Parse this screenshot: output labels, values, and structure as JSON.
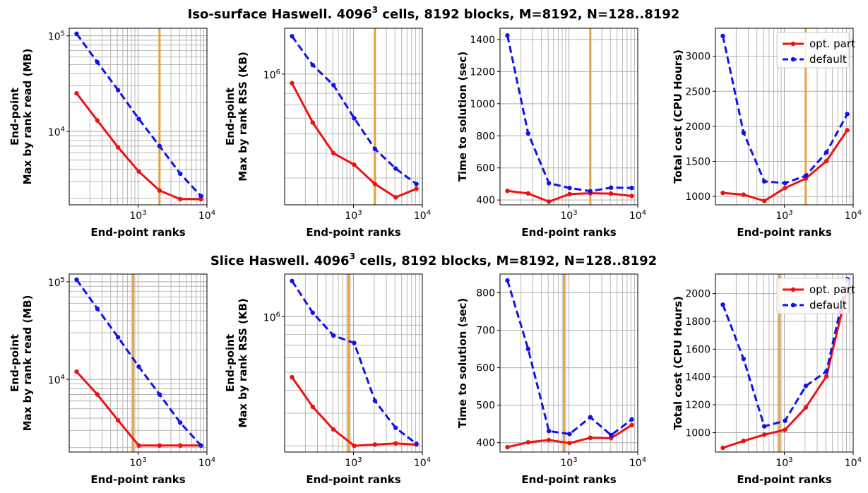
{
  "figure": {
    "rows": [
      {
        "title_prefix": "Iso-surface Haswell. 4096",
        "title_sup": "3",
        "title_suffix": " cells, 8192 blocks, M=8192, N=128..8192"
      },
      {
        "title_prefix": "Slice Haswell. 4096",
        "title_sup": "3",
        "title_suffix": " cells, 8192 blocks, M=8192, N=128..8192"
      }
    ]
  },
  "colors": {
    "opt_part": "#ee1111",
    "default": "#1111ee",
    "marker_line": "#e8a040",
    "grid": "#b0b0b0"
  },
  "chart_data": [
    {
      "type": "line",
      "row": 0,
      "col": 0,
      "xlabel": "End-point ranks",
      "ylabel": [
        "End-point",
        "Max by rank read (MB)"
      ],
      "xscale": "log",
      "yscale": "log",
      "xlim": [
        100,
        10000
      ],
      "ylim": [
        1700,
        120000
      ],
      "x": [
        128,
        256,
        512,
        1024,
        2048,
        4096,
        8192
      ],
      "series": [
        {
          "name": "opt. part",
          "values": [
            25000,
            13000,
            6800,
            3800,
            2400,
            1950,
            1950
          ]
        },
        {
          "name": "default",
          "values": [
            105000,
            53000,
            27000,
            13500,
            7000,
            3600,
            2100
          ]
        }
      ],
      "vline": 2048,
      "xticks": [
        {
          "v": 1000,
          "base": "10",
          "exp": "3"
        },
        {
          "v": 10000,
          "base": "10",
          "exp": "4"
        }
      ],
      "yticks": [
        {
          "v": 10000,
          "base": "10",
          "exp": "4"
        },
        {
          "v": 100000,
          "base": "10",
          "exp": "5"
        }
      ],
      "legend": false
    },
    {
      "type": "line",
      "row": 0,
      "col": 1,
      "xlabel": "End-point ranks",
      "ylabel": [
        "End-point",
        "Max by rank RSS (KB)"
      ],
      "xscale": "log",
      "yscale": "log",
      "xlim": [
        100,
        10000
      ],
      "ylim": [
        220000,
        1700000
      ],
      "x": [
        128,
        256,
        512,
        1024,
        2048,
        4096,
        8192
      ],
      "series": [
        {
          "name": "opt. part",
          "values": [
            900000,
            570000,
            400000,
            350000,
            280000,
            240000,
            265000
          ]
        },
        {
          "name": "default",
          "values": [
            1550000,
            1110000,
            880000,
            600000,
            420000,
            335000,
            280000
          ]
        }
      ],
      "vline": 2048,
      "xticks": [
        {
          "v": 1000,
          "base": "10",
          "exp": "3"
        },
        {
          "v": 10000,
          "base": "10",
          "exp": "4"
        }
      ],
      "yticks": [
        {
          "v": 1000000,
          "base": "10",
          "exp": "6"
        }
      ],
      "legend": false
    },
    {
      "type": "line",
      "row": 0,
      "col": 2,
      "xlabel": "End-point ranks",
      "ylabel": [
        "Time to solution (sec)"
      ],
      "xscale": "log",
      "yscale": "linear",
      "xlim": [
        100,
        10000
      ],
      "ylim": [
        370,
        1470
      ],
      "x": [
        128,
        256,
        512,
        1024,
        2048,
        4096,
        8192
      ],
      "series": [
        {
          "name": "opt. part",
          "values": [
            457,
            441,
            390,
            437,
            442,
            440,
            425
          ]
        },
        {
          "name": "default",
          "values": [
            1425,
            815,
            505,
            475,
            455,
            477,
            475
          ]
        }
      ],
      "vline": 2048,
      "xticks": [
        {
          "v": 1000,
          "base": "10",
          "exp": "3"
        },
        {
          "v": 10000,
          "base": "10",
          "exp": "4"
        }
      ],
      "yticks": [
        {
          "v": 400,
          "label": "400"
        },
        {
          "v": 600,
          "label": "600"
        },
        {
          "v": 800,
          "label": "800"
        },
        {
          "v": 1000,
          "label": "1000"
        },
        {
          "v": 1200,
          "label": "1200"
        },
        {
          "v": 1400,
          "label": "1400"
        }
      ],
      "legend": false
    },
    {
      "type": "line",
      "row": 0,
      "col": 3,
      "xlabel": "End-point ranks",
      "ylabel": [
        "Total cost (CPU Hours)"
      ],
      "xscale": "log",
      "yscale": "linear",
      "xlim": [
        100,
        10000
      ],
      "ylim": [
        880,
        3400
      ],
      "x": [
        128,
        256,
        512,
        1024,
        2048,
        4096,
        8192
      ],
      "series": [
        {
          "name": "opt. part",
          "values": [
            1050,
            1025,
            935,
            1120,
            1255,
            1505,
            1945
          ]
        },
        {
          "name": "default",
          "values": [
            3290,
            1910,
            1215,
            1190,
            1295,
            1630,
            2175
          ]
        }
      ],
      "vline": 2048,
      "xticks": [
        {
          "v": 1000,
          "base": "10",
          "exp": "3"
        },
        {
          "v": 10000,
          "base": "10",
          "exp": "4"
        }
      ],
      "yticks": [
        {
          "v": 1000,
          "label": "1000"
        },
        {
          "v": 1500,
          "label": "1500"
        },
        {
          "v": 2000,
          "label": "2000"
        },
        {
          "v": 2500,
          "label": "2500"
        },
        {
          "v": 3000,
          "label": "3000"
        }
      ],
      "legend": true
    },
    {
      "type": "line",
      "row": 1,
      "col": 0,
      "xlabel": "End-point ranks",
      "ylabel": [
        "End-point",
        "Max by rank read (MB)"
      ],
      "xscale": "log",
      "yscale": "log",
      "xlim": [
        100,
        10000
      ],
      "ylim": [
        1800,
        120000
      ],
      "x": [
        128,
        256,
        512,
        1024,
        2048,
        4096,
        8192
      ],
      "series": [
        {
          "name": "opt. part",
          "values": [
            12000,
            7000,
            3800,
            2100,
            2100,
            2100,
            2100
          ]
        },
        {
          "name": "default",
          "values": [
            105000,
            53000,
            27000,
            13500,
            7000,
            3600,
            2100
          ]
        }
      ],
      "vline": 850,
      "xticks": [
        {
          "v": 1000,
          "base": "10",
          "exp": "3"
        },
        {
          "v": 10000,
          "base": "10",
          "exp": "4"
        }
      ],
      "yticks": [
        {
          "v": 10000,
          "base": "10",
          "exp": "4"
        },
        {
          "v": 100000,
          "base": "10",
          "exp": "5"
        }
      ],
      "legend": false
    },
    {
      "type": "line",
      "row": 1,
      "col": 1,
      "xlabel": "End-point ranks",
      "ylabel": [
        "End-point",
        "Max by rank RSS (KB)"
      ],
      "xscale": "log",
      "yscale": "log",
      "xlim": [
        100,
        10000
      ],
      "ylim": [
        185000,
        1700000
      ],
      "x": [
        128,
        256,
        512,
        1024,
        2048,
        4096,
        8192
      ],
      "series": [
        {
          "name": "opt. part",
          "values": [
            470000,
            325000,
            245000,
            200000,
            203000,
            206000,
            203000
          ]
        },
        {
          "name": "default",
          "values": [
            1560000,
            1050000,
            790000,
            720000,
            350000,
            250000,
            205000
          ]
        }
      ],
      "vline": 850,
      "xticks": [
        {
          "v": 1000,
          "base": "10",
          "exp": "3"
        },
        {
          "v": 10000,
          "base": "10",
          "exp": "4"
        }
      ],
      "yticks": [
        {
          "v": 1000000,
          "base": "10",
          "exp": "6"
        }
      ],
      "legend": false
    },
    {
      "type": "line",
      "row": 1,
      "col": 2,
      "xlabel": "End-point ranks",
      "ylabel": [
        "Time to solution (sec)"
      ],
      "xscale": "log",
      "yscale": "linear",
      "xlim": [
        100,
        10000
      ],
      "ylim": [
        375,
        850
      ],
      "x": [
        128,
        256,
        512,
        1024,
        2048,
        4096,
        8192
      ],
      "series": [
        {
          "name": "opt. part",
          "values": [
            388,
            401,
            407,
            399,
            413,
            412,
            447
          ]
        },
        {
          "name": "default",
          "values": [
            833,
            650,
            431,
            423,
            468,
            420,
            462
          ]
        }
      ],
      "vline": 850,
      "xticks": [
        {
          "v": 1000,
          "base": "10",
          "exp": "3"
        },
        {
          "v": 10000,
          "base": "10",
          "exp": "4"
        }
      ],
      "yticks": [
        {
          "v": 400,
          "label": "400"
        },
        {
          "v": 500,
          "label": "500"
        },
        {
          "v": 600,
          "label": "600"
        },
        {
          "v": 700,
          "label": "700"
        },
        {
          "v": 800,
          "label": "800"
        }
      ],
      "legend": false
    },
    {
      "type": "line",
      "row": 1,
      "col": 3,
      "xlabel": "End-point ranks",
      "ylabel": [
        "Total cost (CPU Hours)"
      ],
      "xscale": "log",
      "yscale": "linear",
      "xlim": [
        100,
        10000
      ],
      "ylim": [
        860,
        2140
      ],
      "x": [
        128,
        256,
        512,
        1024,
        2048,
        4096,
        8192
      ],
      "series": [
        {
          "name": "opt. part",
          "values": [
            890,
            940,
            985,
            1020,
            1180,
            1405,
            2030
          ]
        },
        {
          "name": "default",
          "values": [
            1920,
            1530,
            1045,
            1085,
            1335,
            1440,
            2105
          ]
        }
      ],
      "vline": 850,
      "xticks": [
        {
          "v": 1000,
          "base": "10",
          "exp": "3"
        },
        {
          "v": 10000,
          "base": "10",
          "exp": "4"
        }
      ],
      "yticks": [
        {
          "v": 1000,
          "label": "1000"
        },
        {
          "v": 1200,
          "label": "1200"
        },
        {
          "v": 1400,
          "label": "1400"
        },
        {
          "v": 1600,
          "label": "1600"
        },
        {
          "v": 1800,
          "label": "1800"
        },
        {
          "v": 2000,
          "label": "2000"
        }
      ],
      "legend": true
    }
  ]
}
